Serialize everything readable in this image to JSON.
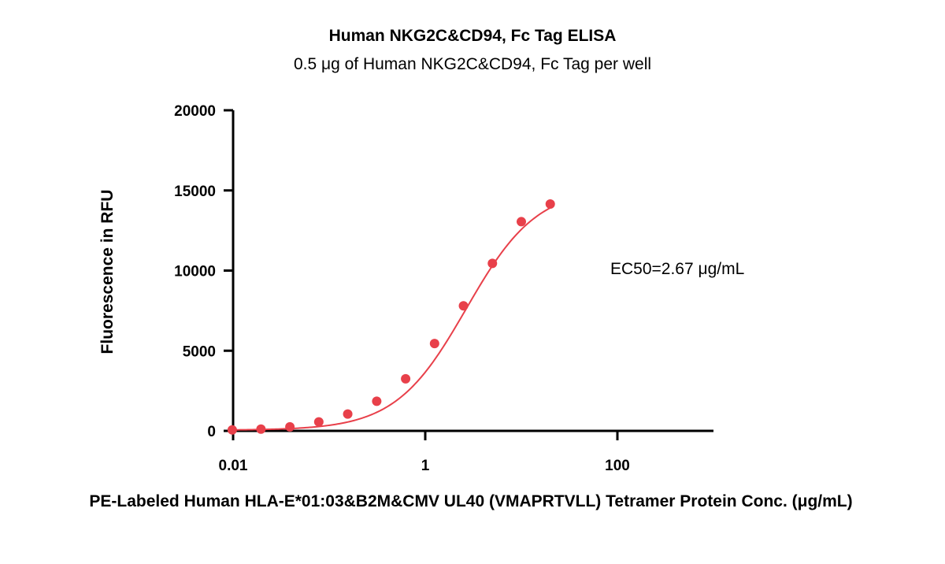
{
  "chart_data": {
    "type": "scatter",
    "title": "Human NKG2C&CD94, Fc Tag ELISA",
    "subtitle": "0.5 μg of Human NKG2C&CD94, Fc Tag per well",
    "xlabel": "PE-Labeled Human HLA-E*01:03&B2M&CMV UL40 (VMAPRTVLL) Tetramer Protein Conc. (μg/mL)",
    "ylabel": "Fluorescence in RFU",
    "x_scale": "log",
    "xlim": [
      0.01,
      1000
    ],
    "ylim": [
      0,
      20000
    ],
    "x_ticks": [
      0.01,
      1,
      100
    ],
    "x_tick_labels": [
      "0.01",
      "1",
      "100"
    ],
    "y_ticks": [
      0,
      5000,
      10000,
      15000,
      20000
    ],
    "y_tick_labels": [
      "0",
      "5000",
      "10000",
      "15000",
      "20000"
    ],
    "color": "#e8404a",
    "annotation": "EC50=2.67  μg/mL",
    "ec50": 2.67,
    "series": [
      {
        "x": [
          0.0098,
          0.0195,
          0.039,
          0.078,
          0.156,
          0.3125,
          0.625,
          1.25,
          2.5,
          5,
          10,
          20
        ],
        "y": [
          60,
          110,
          250,
          560,
          1050,
          1850,
          3250,
          5450,
          7800,
          10450,
          13050,
          14150
        ]
      }
    ],
    "fit": {
      "bottom": 40,
      "top": 15200,
      "ec50": 2.67,
      "hill": 1.18
    }
  }
}
